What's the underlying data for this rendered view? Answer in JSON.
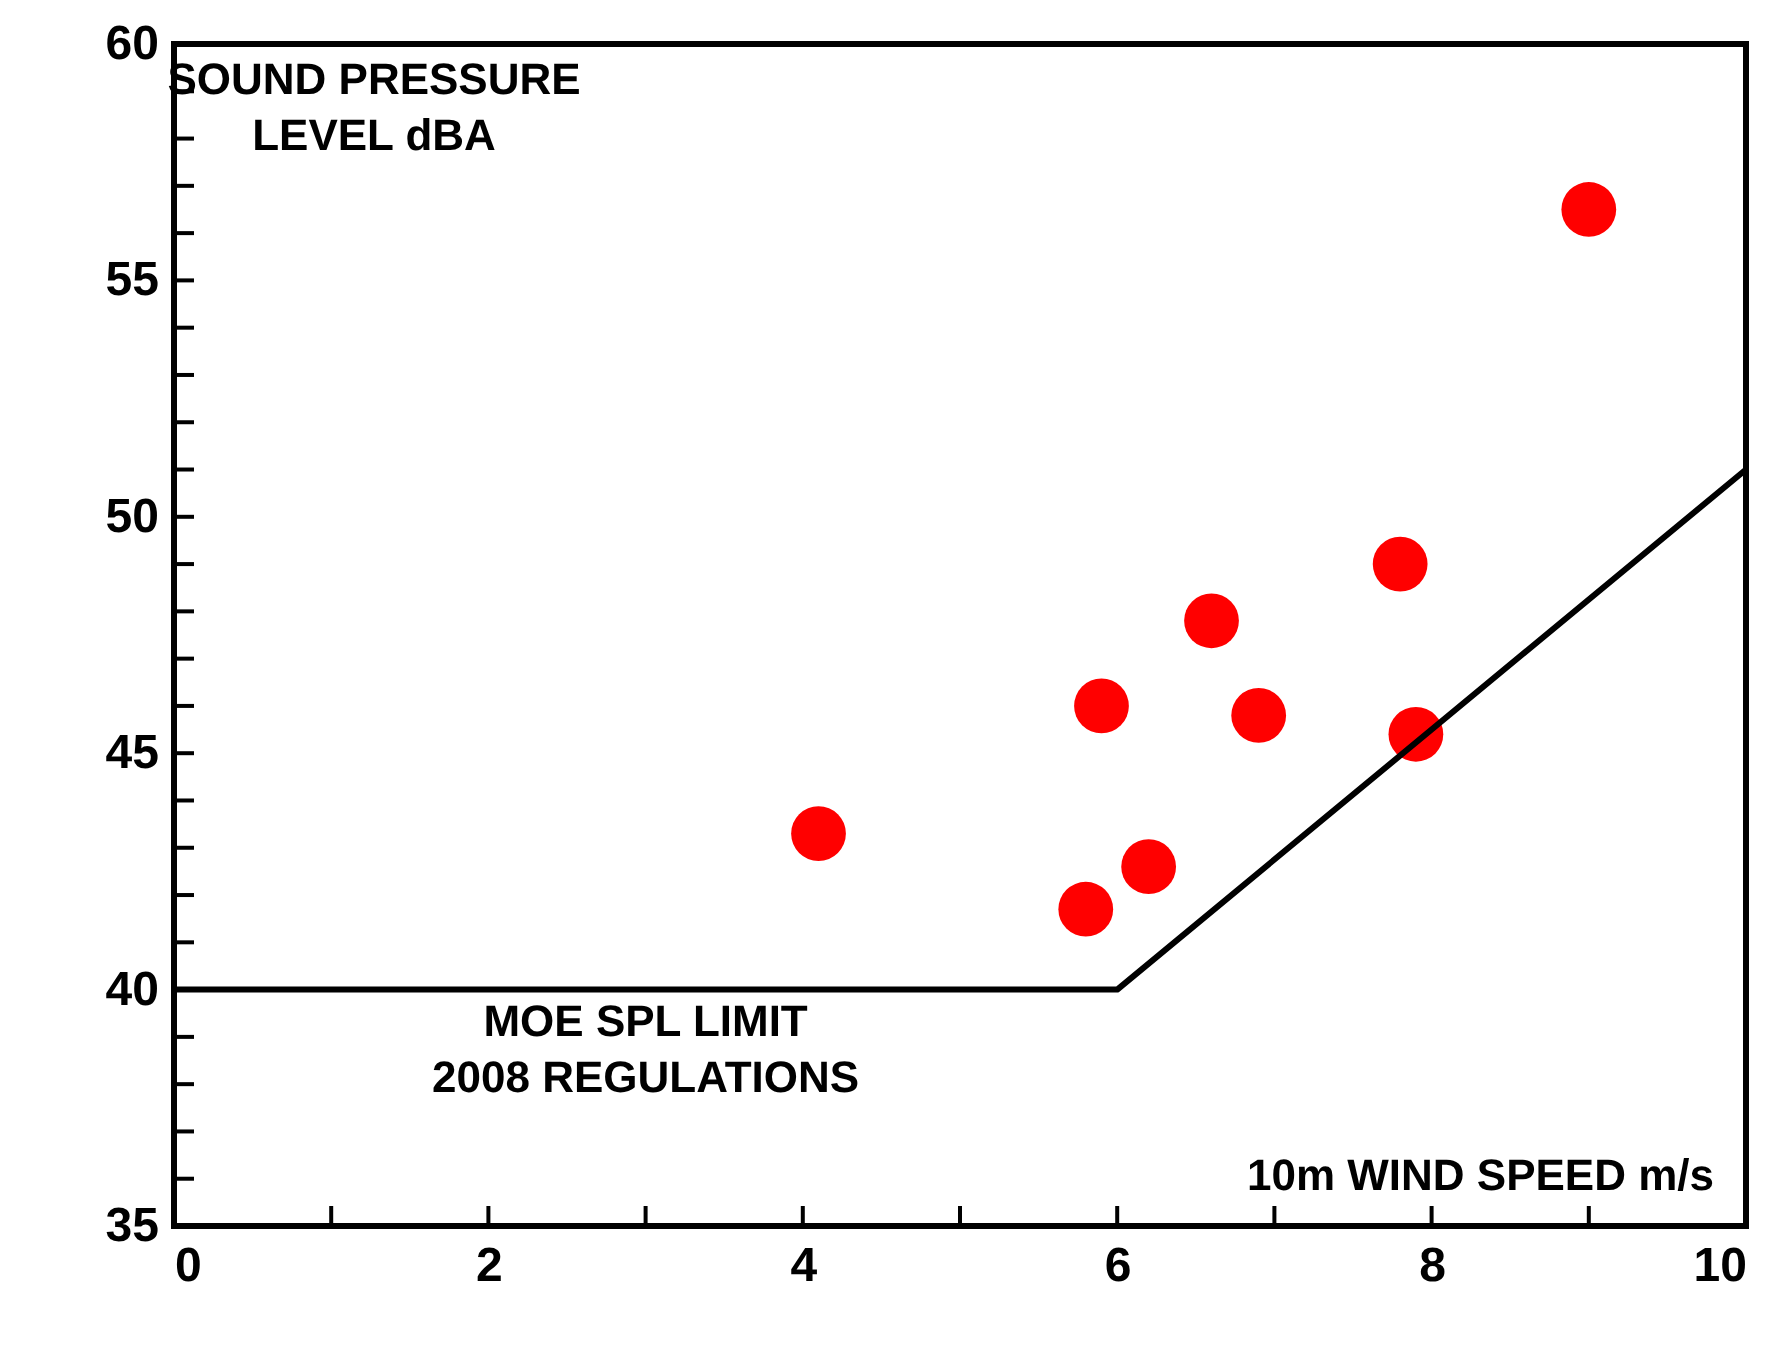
{
  "chart_data": {
    "type": "scatter",
    "xlabel": "10m WIND SPEED m/s",
    "ylabel": "SOUND PRESSURE\nLEVEL dBA",
    "xlim": [
      0,
      10
    ],
    "ylim": [
      35,
      60
    ],
    "xticks": [
      0,
      {
        "value": 1,
        "label": null
      },
      2,
      {
        "value": 3,
        "label": null
      },
      4,
      {
        "value": 5,
        "label": null
      },
      6,
      {
        "value": 7,
        "label": null
      },
      8,
      {
        "value": 9,
        "label": null
      },
      10
    ],
    "yticks": [
      35,
      {
        "value": 36,
        "label": null
      },
      {
        "value": 37,
        "label": null
      },
      {
        "value": 38,
        "label": null
      },
      {
        "value": 39,
        "label": null
      },
      40,
      {
        "value": 41,
        "label": null
      },
      {
        "value": 42,
        "label": null
      },
      {
        "value": 43,
        "label": null
      },
      {
        "value": 44,
        "label": null
      },
      45,
      {
        "value": 46,
        "label": null
      },
      {
        "value": 47,
        "label": null
      },
      {
        "value": 48,
        "label": null
      },
      {
        "value": 49,
        "label": null
      },
      50,
      {
        "value": 51,
        "label": null
      },
      {
        "value": 52,
        "label": null
      },
      {
        "value": 53,
        "label": null
      },
      {
        "value": 54,
        "label": null
      },
      55,
      {
        "value": 56,
        "label": null
      },
      {
        "value": 57,
        "label": null
      },
      {
        "value": 58,
        "label": null
      },
      {
        "value": 59,
        "label": null
      },
      60
    ],
    "grid": false,
    "marker": "circle",
    "annotations": [
      {
        "text": "MOE SPL LIMIT\n2008 REGULATIONS",
        "x": 3,
        "y": 40
      }
    ],
    "series": [
      {
        "color": "#ff0000",
        "x": [
          4.1,
          5.8,
          5.9,
          6.2,
          6.6,
          6.9,
          7.8,
          7.9,
          9.0
        ],
        "values": [
          43.3,
          41.7,
          46.0,
          42.6,
          47.8,
          45.8,
          49.0,
          45.4,
          56.5
        ]
      },
      {
        "type": "line",
        "color": "#000000",
        "line_style": "solid",
        "marker": "none",
        "x": [
          0,
          6,
          10
        ],
        "values": [
          40,
          40,
          51
        ]
      }
    ]
  }
}
